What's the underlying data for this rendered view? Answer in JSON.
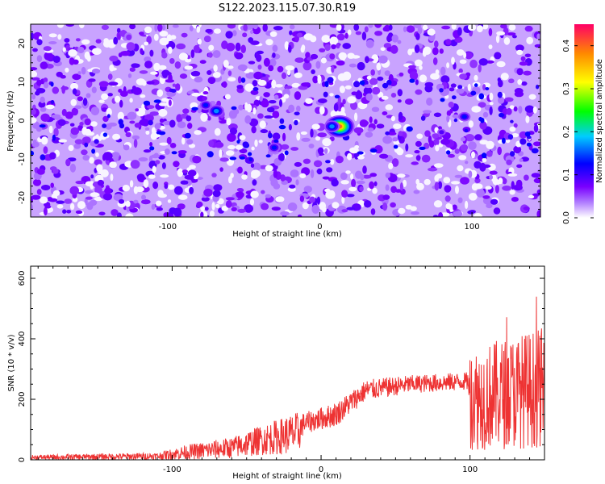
{
  "title": "S122.2023.115.07.30.R19",
  "chart_data": [
    {
      "type": "heatmap",
      "xlabel": "Height of straight line (km)",
      "ylabel": "Frequency (Hz)",
      "xlim": [
        -190,
        145
      ],
      "ylim": [
        -25,
        25
      ],
      "x_ticks": [
        -100,
        0,
        100
      ],
      "y_ticks": [
        -20,
        -10,
        0,
        10,
        20
      ],
      "colorbar": {
        "label": "Normalized spectral amplitude",
        "range": [
          0,
          0.45
        ],
        "ticks": [
          0.0,
          0.1,
          0.2,
          0.3,
          0.4
        ],
        "colors": [
          "#ffffff",
          "#8800ff",
          "#0000ff",
          "#00ffff",
          "#00ff00",
          "#ffff00",
          "#ff8800",
          "#ff0066"
        ]
      },
      "background_level": 0.07,
      "hotspots": [
        {
          "x": 13,
          "y": -1.5,
          "amp": 0.42
        },
        {
          "x": 8,
          "y": -1.5,
          "amp": 0.17
        },
        {
          "x": -68,
          "y": 2.5,
          "amp": 0.18
        },
        {
          "x": -30,
          "y": -7,
          "amp": 0.12
        },
        {
          "x": 95,
          "y": 1,
          "amp": 0.12
        },
        {
          "x": -75,
          "y": 4,
          "amp": 0.11
        },
        {
          "x": 80,
          "y": -3,
          "amp": 0.1
        }
      ]
    },
    {
      "type": "line",
      "xlabel": "Height of straight line (km)",
      "ylabel": "SNR (10 * v/v)",
      "xlim": [
        -195,
        150
      ],
      "ylim": [
        0,
        640
      ],
      "x_ticks": [
        -100,
        0,
        100
      ],
      "y_ticks": [
        0,
        200,
        400,
        600
      ],
      "color": "#ee3333",
      "envelope": [
        {
          "x": -195,
          "base": 8,
          "noise": 8
        },
        {
          "x": -110,
          "base": 12,
          "noise": 12
        },
        {
          "x": -90,
          "base": 25,
          "noise": 25
        },
        {
          "x": -60,
          "base": 40,
          "noise": 35
        },
        {
          "x": -40,
          "base": 65,
          "noise": 50
        },
        {
          "x": -15,
          "base": 90,
          "noise": 70
        },
        {
          "x": -12,
          "base": 120,
          "noise": 35
        },
        {
          "x": 10,
          "base": 150,
          "noise": 40
        },
        {
          "x": 30,
          "base": 230,
          "noise": 35
        },
        {
          "x": 60,
          "base": 250,
          "noise": 30
        },
        {
          "x": 99,
          "base": 260,
          "noise": 30
        },
        {
          "x": 100,
          "base": 200,
          "noise": 170
        },
        {
          "x": 150,
          "base": 240,
          "noise": 200
        }
      ]
    }
  ]
}
